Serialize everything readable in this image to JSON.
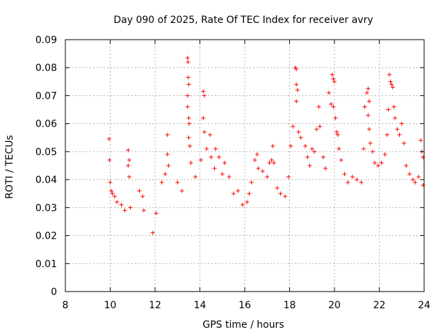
{
  "chart_data": {
    "type": "scatter",
    "title": "Day 090 of 2025, Rate Of TEC Index for receiver avry",
    "xlabel": "GPS time / hours",
    "ylabel": "ROTI / TECUs",
    "xlim": [
      8,
      24
    ],
    "ylim": [
      0,
      0.09
    ],
    "xticks": [
      "8",
      "10",
      "12",
      "14",
      "16",
      "18",
      "20",
      "22",
      "24"
    ],
    "yticks": [
      "0",
      "0.01",
      "0.02",
      "0.03",
      "0.04",
      "0.05",
      "0.06",
      "0.07",
      "0.08",
      "0.09"
    ],
    "grid": true,
    "marker": "+",
    "marker_color": "#ff0000",
    "series": [
      {
        "points": [
          [
            9.95,
            0.0545
          ],
          [
            9.97,
            0.047
          ],
          [
            10.0,
            0.039
          ],
          [
            10.05,
            0.036
          ],
          [
            10.1,
            0.035
          ],
          [
            10.2,
            0.034
          ],
          [
            10.3,
            0.032
          ],
          [
            10.5,
            0.031
          ],
          [
            10.65,
            0.029
          ],
          [
            10.8,
            0.0505
          ],
          [
            10.85,
            0.047
          ],
          [
            10.8,
            0.045
          ],
          [
            10.85,
            0.041
          ],
          [
            10.9,
            0.03
          ],
          [
            11.3,
            0.036
          ],
          [
            11.45,
            0.034
          ],
          [
            11.5,
            0.029
          ],
          [
            11.9,
            0.021
          ],
          [
            12.05,
            0.028
          ],
          [
            12.3,
            0.039
          ],
          [
            12.45,
            0.042
          ],
          [
            12.55,
            0.056
          ],
          [
            12.55,
            0.049
          ],
          [
            12.6,
            0.045
          ],
          [
            13.0,
            0.039
          ],
          [
            13.2,
            0.036
          ],
          [
            13.45,
            0.0835
          ],
          [
            13.47,
            0.082
          ],
          [
            13.48,
            0.0765
          ],
          [
            13.5,
            0.074
          ],
          [
            13.45,
            0.07
          ],
          [
            13.45,
            0.066
          ],
          [
            13.5,
            0.062
          ],
          [
            13.52,
            0.06
          ],
          [
            13.5,
            0.055
          ],
          [
            13.55,
            0.052
          ],
          [
            13.6,
            0.046
          ],
          [
            13.8,
            0.041
          ],
          [
            14.05,
            0.047
          ],
          [
            14.15,
            0.0715
          ],
          [
            14.2,
            0.07
          ],
          [
            14.15,
            0.062
          ],
          [
            14.2,
            0.057
          ],
          [
            14.3,
            0.051
          ],
          [
            14.45,
            0.056
          ],
          [
            14.5,
            0.048
          ],
          [
            14.65,
            0.044
          ],
          [
            14.7,
            0.051
          ],
          [
            14.85,
            0.048
          ],
          [
            15.0,
            0.042
          ],
          [
            15.1,
            0.046
          ],
          [
            15.3,
            0.041
          ],
          [
            15.5,
            0.035
          ],
          [
            15.7,
            0.036
          ],
          [
            15.9,
            0.031
          ],
          [
            16.1,
            0.032
          ],
          [
            16.2,
            0.035
          ],
          [
            16.3,
            0.039
          ],
          [
            16.45,
            0.047
          ],
          [
            16.55,
            0.049
          ],
          [
            16.6,
            0.044
          ],
          [
            16.8,
            0.043
          ],
          [
            17.0,
            0.041
          ],
          [
            17.1,
            0.046
          ],
          [
            17.2,
            0.047
          ],
          [
            17.25,
            0.052
          ],
          [
            17.3,
            0.046
          ],
          [
            17.45,
            0.037
          ],
          [
            17.6,
            0.035
          ],
          [
            17.8,
            0.034
          ],
          [
            17.95,
            0.041
          ],
          [
            18.05,
            0.052
          ],
          [
            18.15,
            0.059
          ],
          [
            18.25,
            0.08
          ],
          [
            18.3,
            0.0795
          ],
          [
            18.3,
            0.074
          ],
          [
            18.35,
            0.072
          ],
          [
            18.3,
            0.068
          ],
          [
            18.4,
            0.057
          ],
          [
            18.5,
            0.055
          ],
          [
            18.7,
            0.052
          ],
          [
            18.8,
            0.048
          ],
          [
            18.9,
            0.045
          ],
          [
            19.0,
            0.051
          ],
          [
            19.1,
            0.05
          ],
          [
            19.2,
            0.058
          ],
          [
            19.3,
            0.066
          ],
          [
            19.35,
            0.059
          ],
          [
            19.5,
            0.048
          ],
          [
            19.6,
            0.044
          ],
          [
            19.75,
            0.071
          ],
          [
            19.85,
            0.067
          ],
          [
            19.9,
            0.0775
          ],
          [
            19.95,
            0.076
          ],
          [
            20.0,
            0.075
          ],
          [
            19.95,
            0.066
          ],
          [
            20.05,
            0.062
          ],
          [
            20.1,
            0.057
          ],
          [
            20.15,
            0.056
          ],
          [
            20.2,
            0.051
          ],
          [
            20.3,
            0.047
          ],
          [
            20.45,
            0.042
          ],
          [
            20.6,
            0.039
          ],
          [
            20.8,
            0.041
          ],
          [
            21.0,
            0.04
          ],
          [
            21.2,
            0.039
          ],
          [
            21.3,
            0.051
          ],
          [
            21.35,
            0.066
          ],
          [
            21.45,
            0.071
          ],
          [
            21.5,
            0.0725
          ],
          [
            21.55,
            0.068
          ],
          [
            21.5,
            0.063
          ],
          [
            21.55,
            0.058
          ],
          [
            21.6,
            0.053
          ],
          [
            21.7,
            0.05
          ],
          [
            21.8,
            0.046
          ],
          [
            21.95,
            0.045
          ],
          [
            22.1,
            0.046
          ],
          [
            22.25,
            0.049
          ],
          [
            22.35,
            0.056
          ],
          [
            22.4,
            0.065
          ],
          [
            22.45,
            0.0775
          ],
          [
            22.5,
            0.075
          ],
          [
            22.55,
            0.074
          ],
          [
            22.6,
            0.073
          ],
          [
            22.65,
            0.066
          ],
          [
            22.7,
            0.062
          ],
          [
            22.8,
            0.058
          ],
          [
            22.9,
            0.056
          ],
          [
            23.0,
            0.06
          ],
          [
            23.1,
            0.053
          ],
          [
            23.2,
            0.045
          ],
          [
            23.35,
            0.042
          ],
          [
            23.5,
            0.04
          ],
          [
            23.6,
            0.039
          ],
          [
            23.75,
            0.041
          ],
          [
            23.85,
            0.054
          ],
          [
            23.9,
            0.05
          ],
          [
            23.95,
            0.048
          ],
          [
            23.95,
            0.038
          ]
        ]
      }
    ]
  }
}
